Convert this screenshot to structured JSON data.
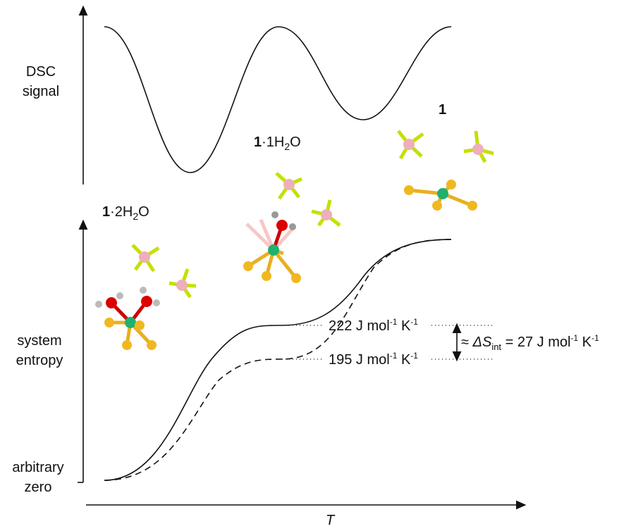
{
  "axes": {
    "dsc_label": [
      "DSC",
      "signal"
    ],
    "entropy_label": [
      "system",
      "entropy"
    ],
    "zero_label": [
      "arbitrary",
      "zero"
    ],
    "x_label": "T"
  },
  "species": [
    {
      "bold": "1",
      "text": "·2H",
      "sub": "2",
      "tail": "O"
    },
    {
      "bold": "1",
      "text": "·1H",
      "sub": "2",
      "tail": "O"
    },
    {
      "bold": "1"
    }
  ],
  "annotations": {
    "upper": {
      "text": "222 J mol",
      "sup1": "-1",
      "mid": " K",
      "sup2": "-1"
    },
    "lower": {
      "text": "195 J mol",
      "sup1": "-1",
      "mid": " K",
      "sup2": "-1"
    },
    "delta": {
      "pre": "≈ ",
      "symbol": "ΔS",
      "sub": "int",
      "text": " = 27 J mol",
      "sup1": "-1",
      "mid": " K",
      "sup2": "-1"
    }
  }
}
